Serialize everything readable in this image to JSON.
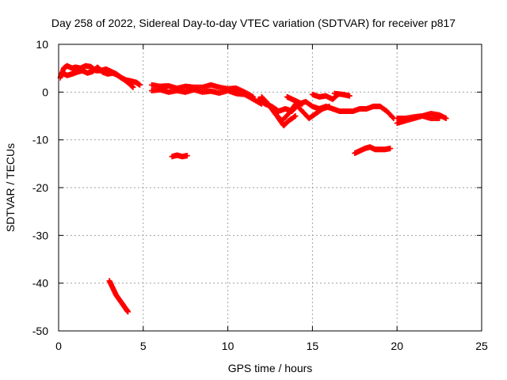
{
  "chart_data": {
    "type": "scatter",
    "title": "Day 258 of 2022, Sidereal Day-to-day VTEC variation (SDTVAR) for receiver p817",
    "xlabel": "GPS time / hours",
    "ylabel": "SDTVAR / TECUs",
    "xlim": [
      0,
      25
    ],
    "ylim": [
      -50,
      10
    ],
    "xticks": [
      "0",
      "5",
      "10",
      "15",
      "20",
      "25"
    ],
    "yticks": [
      "10",
      "0",
      "-10",
      "-20",
      "-30",
      "-40",
      "-50"
    ],
    "grid": true,
    "marker": "+",
    "marker_color": "#ff0000",
    "series": [
      {
        "name": "SDTVAR",
        "segments": [
          {
            "x": [
              0.1,
              0.3,
              0.5,
              0.8,
              1.0,
              1.3,
              1.6,
              1.9,
              2.2,
              2.5,
              2.8,
              3.1,
              3.4,
              3.7,
              4.0,
              4.3,
              4.6,
              4.8
            ],
            "y": [
              3,
              5,
              5.5,
              5,
              5.2,
              5,
              5.5,
              5.3,
              4.5,
              4.5,
              4.8,
              4.3,
              3.8,
              3,
              2.5,
              2.3,
              2,
              1.5
            ]
          },
          {
            "x": [
              0.2,
              0.5,
              0.8,
              1.1,
              1.4,
              1.7,
              2.0,
              2.3,
              2.6,
              2.9,
              3.2,
              3.5,
              3.8,
              4.1,
              4.4
            ],
            "y": [
              4,
              3.5,
              3.8,
              4.2,
              4.5,
              4.0,
              4.3,
              5.2,
              4.2,
              3.8,
              4.0,
              3.5,
              2.8,
              2.0,
              1.0
            ]
          },
          {
            "x": [
              5.5,
              6.0,
              6.5,
              7.0,
              7.5,
              8.0,
              8.5,
              9.0,
              9.5,
              10.0,
              10.5,
              11.0,
              11.5
            ],
            "y": [
              1.5,
              1.2,
              1.3,
              0.8,
              1.2,
              1.0,
              1.0,
              1.5,
              1.0,
              0.7,
              0.8,
              0.0,
              -1.0
            ]
          },
          {
            "x": [
              5.5,
              6.0,
              6.5,
              7.0,
              7.5,
              8.0,
              8.5,
              9.0,
              9.5,
              10.0,
              10.5,
              11.0,
              11.5,
              12.0
            ],
            "y": [
              0.3,
              0.5,
              0.0,
              0.3,
              0.0,
              0.5,
              0.0,
              0.2,
              -0.2,
              0.3,
              -0.3,
              -0.5,
              -1.5,
              -2.5
            ]
          },
          {
            "x": [
              11.8,
              12.2,
              12.6,
              13.0,
              13.4,
              13.8,
              14.2,
              14.6,
              15.0,
              15.4,
              15.8,
              16.2,
              16.6,
              17.0,
              17.4,
              17.8,
              18.2,
              18.6,
              19.0,
              19.4,
              19.8
            ],
            "y": [
              -1.5,
              -2.5,
              -3.0,
              -4.0,
              -3.5,
              -4.0,
              -2.5,
              -2.0,
              -3.0,
              -3.5,
              -3.0,
              -3.5,
              -4.0,
              -4.0,
              -4.0,
              -3.5,
              -3.5,
              -3.0,
              -3.0,
              -4.0,
              -5.5
            ]
          },
          {
            "x": [
              12.0,
              12.4,
              12.8,
              13.2,
              13.6,
              14.0,
              14.4,
              14.8,
              15.2,
              15.6,
              16.0
            ],
            "y": [
              -1.0,
              -2.5,
              -4.5,
              -6.0,
              -4.5,
              -2.5,
              -4.0,
              -5.5,
              -4.5,
              -3.5,
              -3.0
            ]
          },
          {
            "x": [
              12.2,
              12.6,
              13.0,
              13.3,
              13.6,
              14.0
            ],
            "y": [
              -2.0,
              -3.5,
              -5.5,
              -7.0,
              -6.0,
              -5.0
            ]
          },
          {
            "x": [
              15.0,
              15.4,
              15.8,
              16.2,
              16.5
            ],
            "y": [
              -0.5,
              -1.0,
              -0.8,
              -1.5,
              -0.5
            ]
          },
          {
            "x": [
              16.3,
              16.8,
              17.2
            ],
            "y": [
              -0.3,
              -0.5,
              -0.8
            ]
          },
          {
            "x": [
              13.5,
              13.8,
              14.1,
              14.4
            ],
            "y": [
              -1.0,
              -1.5,
              -2.0,
              -2.5
            ]
          },
          {
            "x": [
              20.0,
              20.5,
              21.0,
              21.5,
              22.0,
              22.5,
              22.9
            ],
            "y": [
              -6.5,
              -6.0,
              -5.5,
              -5.0,
              -4.5,
              -4.8,
              -5.5
            ]
          },
          {
            "x": [
              20.0,
              20.5,
              21.0,
              21.5,
              22.0,
              22.5
            ],
            "y": [
              -5.5,
              -5.5,
              -5.2,
              -5.0,
              -5.5,
              -5.5
            ]
          },
          {
            "x": [
              6.7,
              7.0,
              7.3,
              7.6
            ],
            "y": [
              -13.5,
              -13.2,
              -13.5,
              -13.3
            ]
          },
          {
            "x": [
              17.5,
              17.8,
              18.1,
              18.4,
              18.7,
              19.0,
              19.3,
              19.6
            ],
            "y": [
              -12.8,
              -12.3,
              -11.8,
              -11.5,
              -12.0,
              -12.0,
              -12.0,
              -11.8
            ]
          },
          {
            "x": [
              3.0,
              3.2,
              3.4,
              3.6,
              3.8,
              4.0,
              4.1
            ],
            "y": [
              -39.5,
              -41.0,
              -42.5,
              -43.5,
              -44.5,
              -45.5,
              -46.0
            ]
          }
        ]
      }
    ]
  }
}
